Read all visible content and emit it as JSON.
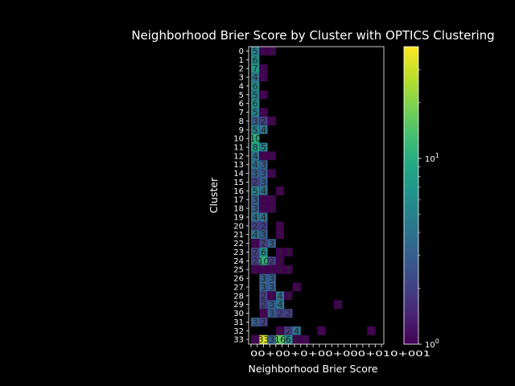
{
  "chart_data": {
    "type": "heatmap",
    "title": "Neighborhood Brier Score by Cluster with OPTICS Clustering",
    "xlabel": "Neighborhood Brier Score",
    "ylabel": "Cluster",
    "x_tick_labels": [
      "0",
      "0+0",
      "0+",
      "0+0",
      "0+00",
      "0+01",
      "0+001",
      "0+0001",
      "0+00001",
      "0+000001",
      "0+0000001",
      "0+00000001",
      "0+000000001",
      "0+0000000001",
      "0+00000000001",
      "0+000000000001",
      "0+0000000000001",
      "0+00000000000001",
      "0+000000000000001",
      "0+0000000000000001",
      "0+00000000000000001",
      "0+000000000000000001+"
    ],
    "y_tick_labels": [
      "0",
      "1",
      "2",
      "3",
      "4",
      "5",
      "6",
      "7",
      "8",
      "9",
      "10",
      "11",
      "12",
      "13",
      "14",
      "15",
      "16",
      "17",
      "18",
      "19",
      "20",
      "21",
      "22",
      "23",
      "24",
      "25",
      "26",
      "27",
      "28",
      "29",
      "30",
      "31",
      "32",
      "33"
    ],
    "colorbar": {
      "scale": "log",
      "min": 1,
      "max": 40,
      "colormap": "viridis",
      "ticks": [
        "10^0",
        "10^1"
      ],
      "tick_values": [
        1,
        10
      ]
    },
    "cells": [
      {
        "row": 0,
        "col": 0,
        "value": 5
      },
      {
        "row": 0,
        "col": 1,
        "value": 1
      },
      {
        "row": 0,
        "col": 2,
        "value": 1
      },
      {
        "row": 1,
        "col": 0,
        "value": 6
      },
      {
        "row": 2,
        "col": 0,
        "value": 7
      },
      {
        "row": 2,
        "col": 1,
        "value": 1
      },
      {
        "row": 3,
        "col": 0,
        "value": 4
      },
      {
        "row": 3,
        "col": 1,
        "value": 1
      },
      {
        "row": 4,
        "col": 0,
        "value": 6
      },
      {
        "row": 5,
        "col": 0,
        "value": 5
      },
      {
        "row": 5,
        "col": 1,
        "value": 1
      },
      {
        "row": 6,
        "col": 0,
        "value": 6
      },
      {
        "row": 7,
        "col": 0,
        "value": 5
      },
      {
        "row": 7,
        "col": 1,
        "value": 1
      },
      {
        "row": 8,
        "col": 0,
        "value": 3
      },
      {
        "row": 8,
        "col": 1,
        "value": 2
      },
      {
        "row": 8,
        "col": 2,
        "value": 1
      },
      {
        "row": 9,
        "col": 0,
        "value": 5
      },
      {
        "row": 9,
        "col": 1,
        "value": 4
      },
      {
        "row": 10,
        "col": 0,
        "value": 10
      },
      {
        "row": 11,
        "col": 0,
        "value": 8
      },
      {
        "row": 11,
        "col": 1,
        "value": 5
      },
      {
        "row": 12,
        "col": 0,
        "value": 4
      },
      {
        "row": 12,
        "col": 1,
        "value": 1
      },
      {
        "row": 12,
        "col": 2,
        "value": 1
      },
      {
        "row": 13,
        "col": 0,
        "value": 4
      },
      {
        "row": 13,
        "col": 1,
        "value": 3
      },
      {
        "row": 14,
        "col": 0,
        "value": 3
      },
      {
        "row": 14,
        "col": 1,
        "value": 3
      },
      {
        "row": 14,
        "col": 2,
        "value": 1
      },
      {
        "row": 15,
        "col": 0,
        "value": 2
      },
      {
        "row": 15,
        "col": 1,
        "value": 3
      },
      {
        "row": 16,
        "col": 0,
        "value": 5
      },
      {
        "row": 16,
        "col": 1,
        "value": 4
      },
      {
        "row": 16,
        "col": 3,
        "value": 1
      },
      {
        "row": 17,
        "col": 0,
        "value": 3
      },
      {
        "row": 17,
        "col": 1,
        "value": 1
      },
      {
        "row": 17,
        "col": 2,
        "value": 1
      },
      {
        "row": 18,
        "col": 0,
        "value": 3
      },
      {
        "row": 18,
        "col": 1,
        "value": 1
      },
      {
        "row": 18,
        "col": 2,
        "value": 1
      },
      {
        "row": 19,
        "col": 0,
        "value": 4
      },
      {
        "row": 19,
        "col": 1,
        "value": 4
      },
      {
        "row": 20,
        "col": 0,
        "value": 2
      },
      {
        "row": 20,
        "col": 1,
        "value": 2
      },
      {
        "row": 20,
        "col": 3,
        "value": 1
      },
      {
        "row": 21,
        "col": 0,
        "value": 4
      },
      {
        "row": 21,
        "col": 1,
        "value": 3
      },
      {
        "row": 21,
        "col": 3,
        "value": 1
      },
      {
        "row": 22,
        "col": 0,
        "value": 1
      },
      {
        "row": 22,
        "col": 1,
        "value": 2
      },
      {
        "row": 22,
        "col": 2,
        "value": 3
      },
      {
        "row": 23,
        "col": 0,
        "value": 2
      },
      {
        "row": 23,
        "col": 1,
        "value": 6
      },
      {
        "row": 23,
        "col": 3,
        "value": 1
      },
      {
        "row": 23,
        "col": 4,
        "value": 1
      },
      {
        "row": 24,
        "col": 0,
        "value": 2
      },
      {
        "row": 24,
        "col": 1,
        "value": 10
      },
      {
        "row": 24,
        "col": 2,
        "value": 2
      },
      {
        "row": 24,
        "col": 3,
        "value": 1
      },
      {
        "row": 25,
        "col": 0,
        "value": 1
      },
      {
        "row": 25,
        "col": 1,
        "value": 1
      },
      {
        "row": 25,
        "col": 2,
        "value": 1
      },
      {
        "row": 25,
        "col": 3,
        "value": 1
      },
      {
        "row": 25,
        "col": 4,
        "value": 1
      },
      {
        "row": 26,
        "col": 1,
        "value": 3
      },
      {
        "row": 26,
        "col": 2,
        "value": 3
      },
      {
        "row": 27,
        "col": 1,
        "value": 3
      },
      {
        "row": 27,
        "col": 2,
        "value": 3
      },
      {
        "row": 27,
        "col": 5,
        "value": 1
      },
      {
        "row": 28,
        "col": 1,
        "value": 2
      },
      {
        "row": 28,
        "col": 2,
        "value": 1
      },
      {
        "row": 28,
        "col": 3,
        "value": 4
      },
      {
        "row": 28,
        "col": 4,
        "value": 1
      },
      {
        "row": 29,
        "col": 1,
        "value": 2
      },
      {
        "row": 29,
        "col": 2,
        "value": 3
      },
      {
        "row": 29,
        "col": 3,
        "value": 4
      },
      {
        "row": 29,
        "col": 10,
        "value": 1
      },
      {
        "row": 30,
        "col": 1,
        "value": 1
      },
      {
        "row": 30,
        "col": 2,
        "value": 3
      },
      {
        "row": 30,
        "col": 3,
        "value": 2
      },
      {
        "row": 30,
        "col": 4,
        "value": 2
      },
      {
        "row": 31,
        "col": 0,
        "value": 3
      },
      {
        "row": 31,
        "col": 1,
        "value": 2
      },
      {
        "row": 32,
        "col": 3,
        "value": 1
      },
      {
        "row": 32,
        "col": 4,
        "value": 2
      },
      {
        "row": 32,
        "col": 5,
        "value": 4
      },
      {
        "row": 32,
        "col": 8,
        "value": 1
      },
      {
        "row": 32,
        "col": 14,
        "value": 1
      },
      {
        "row": 33,
        "col": 0,
        "value": 1
      },
      {
        "row": 33,
        "col": 1,
        "value": 33
      },
      {
        "row": 33,
        "col": 2,
        "value": 3
      },
      {
        "row": 33,
        "col": 3,
        "value": 16
      },
      {
        "row": 33,
        "col": 4,
        "value": 6
      },
      {
        "row": 33,
        "col": 5,
        "value": 1
      },
      {
        "row": 33,
        "col": 6,
        "value": 1
      }
    ]
  }
}
